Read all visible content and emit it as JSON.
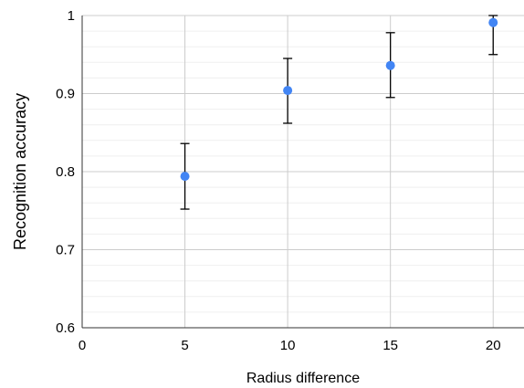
{
  "chart_data": {
    "type": "scatter",
    "xlabel": "Radius difference",
    "ylabel": "Recognition accuracy",
    "xlim": [
      0,
      21.5
    ],
    "ylim": [
      0.6,
      1.0
    ],
    "x_ticks": [
      0,
      5,
      10,
      15,
      20
    ],
    "x_tick_labels": [
      "0",
      "5",
      "10",
      "15",
      "20"
    ],
    "y_ticks": [
      0.6,
      0.7,
      0.8,
      0.9,
      1.0
    ],
    "y_tick_labels": [
      "0.6",
      "0.7",
      "0.8",
      "0.9",
      "1"
    ],
    "y_minor_step": 0.02,
    "grid": true,
    "series": [
      {
        "color": "#4285F4",
        "points": [
          {
            "x": 5,
            "y": 0.794,
            "err_low": 0.752,
            "err_high": 0.836
          },
          {
            "x": 10,
            "y": 0.904,
            "err_low": 0.862,
            "err_high": 0.945
          },
          {
            "x": 15,
            "y": 0.936,
            "err_low": 0.895,
            "err_high": 0.978
          },
          {
            "x": 20,
            "y": 0.991,
            "err_low": 0.95,
            "err_high": 1.0
          }
        ]
      }
    ]
  }
}
